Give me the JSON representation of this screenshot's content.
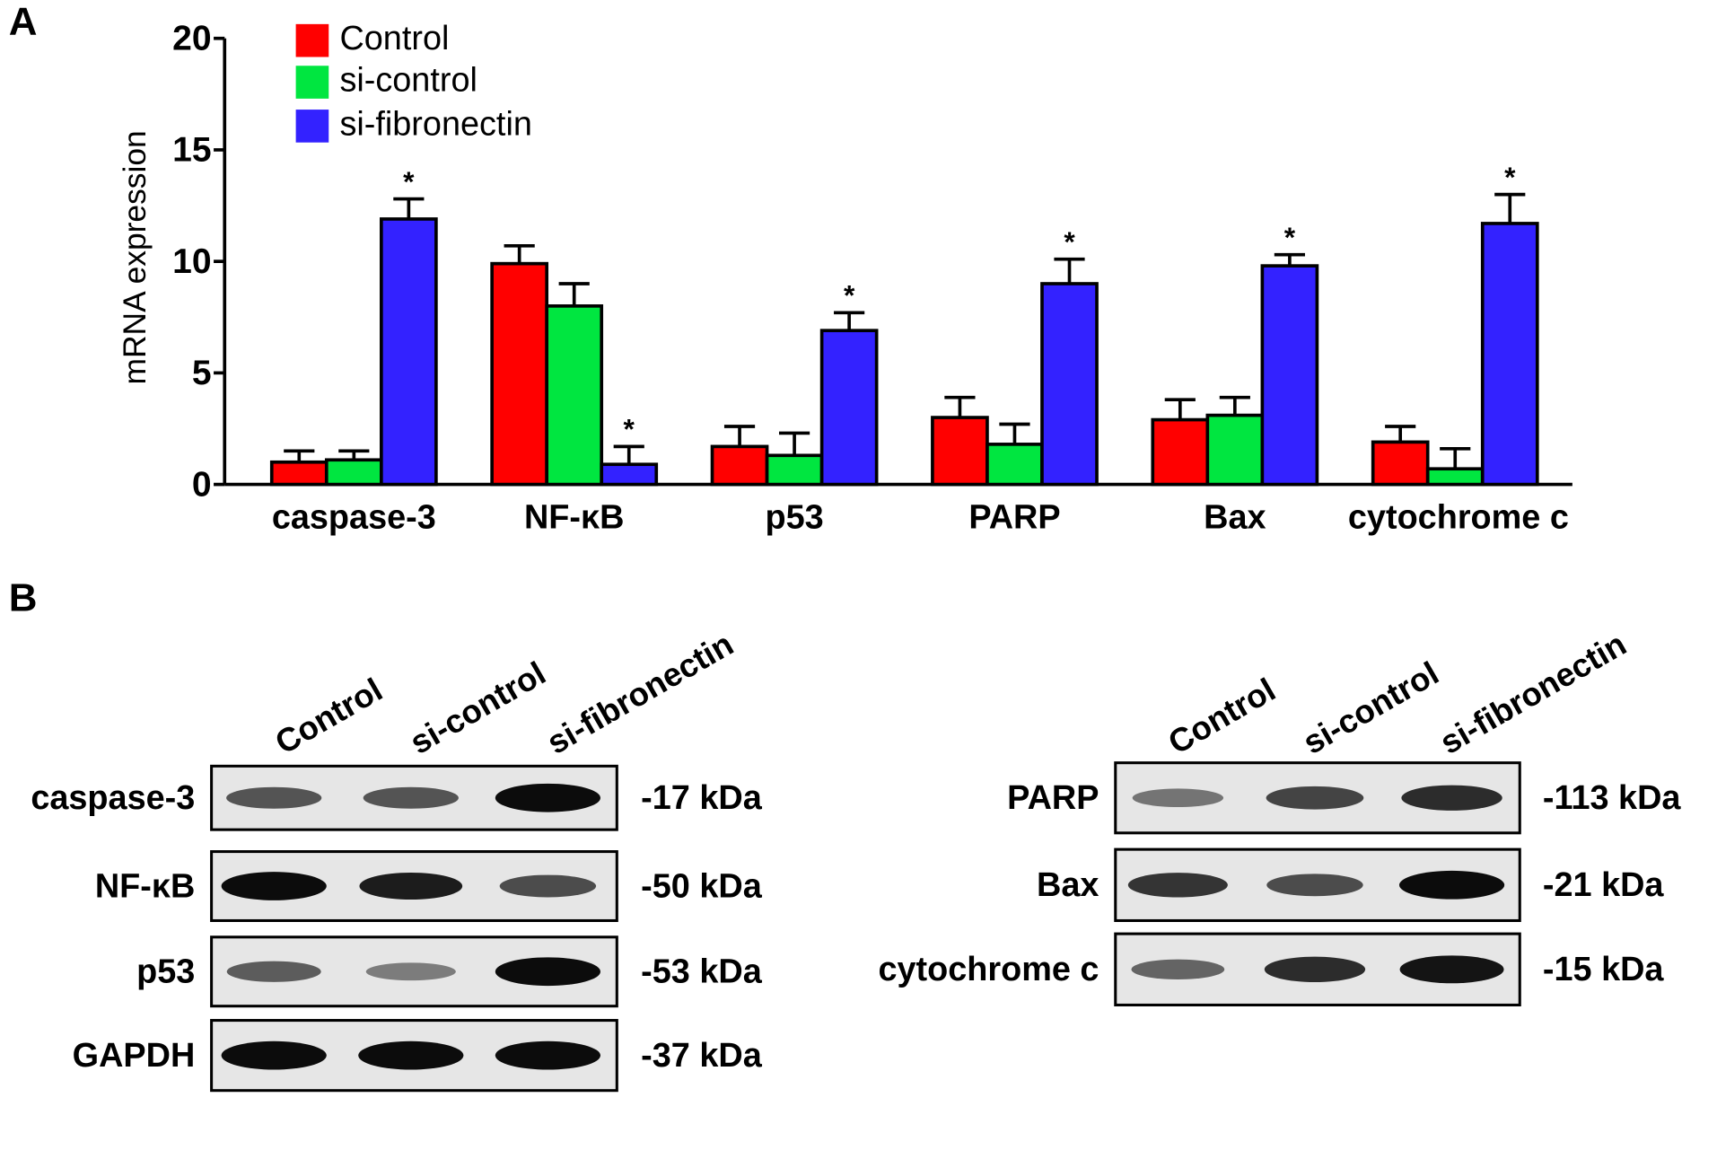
{
  "chart_data": {
    "type": "bar",
    "panel_label": "A",
    "ylabel": "mRNA expression",
    "categories": [
      "caspase-3",
      "NF-κB",
      "p53",
      "PARP",
      "Bax",
      "cytochrome c"
    ],
    "series": [
      {
        "name": "Control",
        "color": "#ff0000",
        "values": [
          1.0,
          9.9,
          1.7,
          3.0,
          2.9,
          1.9
        ],
        "errors": [
          0.5,
          0.8,
          0.9,
          0.9,
          0.9,
          0.7
        ]
      },
      {
        "name": "si-control",
        "color": "#00e640",
        "values": [
          1.1,
          8.0,
          1.3,
          1.8,
          3.1,
          0.7
        ],
        "errors": [
          0.4,
          1.0,
          1.0,
          0.9,
          0.8,
          0.9
        ]
      },
      {
        "name": "si-fibronectin",
        "color": "#3322ff",
        "values": [
          11.9,
          0.9,
          6.9,
          9.0,
          9.8,
          11.7
        ],
        "errors": [
          0.9,
          0.8,
          0.8,
          1.1,
          0.5,
          1.3
        ],
        "significance": [
          "*",
          "*",
          "*",
          "*",
          "*",
          "*"
        ]
      }
    ],
    "ylim": [
      0,
      20
    ],
    "yticks": [
      0,
      5,
      10,
      15,
      20
    ],
    "grid": false
  },
  "blots": {
    "panel_label": "B",
    "groups": [
      {
        "lanes": [
          "Control",
          "si-control",
          "si-fibronectin"
        ],
        "rows": [
          {
            "protein": "caspase-3",
            "size": "-17 kDa"
          },
          {
            "protein": "NF-κB",
            "size": "-50 kDa"
          },
          {
            "protein": "p53",
            "size": "-53 kDa"
          },
          {
            "protein": "GAPDH",
            "size": "-37 kDa"
          }
        ]
      },
      {
        "lanes": [
          "Control",
          "si-control",
          "si-fibronectin"
        ],
        "rows": [
          {
            "protein": "PARP",
            "size": "-113 kDa"
          },
          {
            "protein": "Bax",
            "size": "-21 kDa"
          },
          {
            "protein": "cytochrome c",
            "size": "-15 kDa"
          }
        ]
      }
    ]
  }
}
